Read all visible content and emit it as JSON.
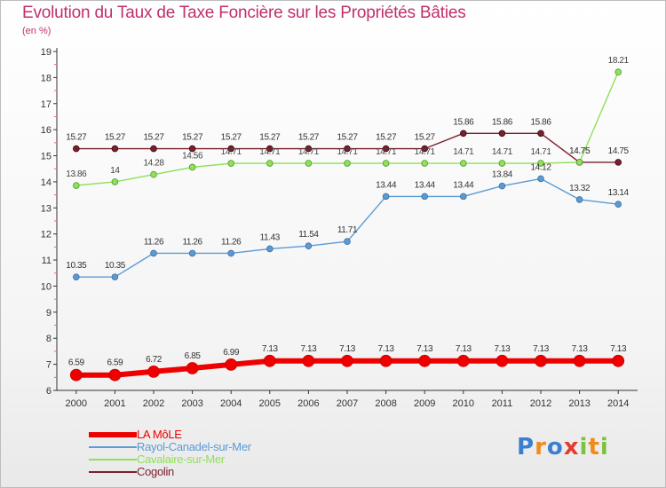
{
  "chart_data": {
    "type": "line",
    "title": "Evolution du Taux de Taxe Foncière sur les Propriétés Bâties",
    "subtitle": "(en %)",
    "xlabel": "",
    "ylabel": "",
    "x": [
      "2000",
      "2001",
      "2002",
      "2003",
      "2004",
      "2005",
      "2006",
      "2007",
      "2008",
      "2009",
      "2010",
      "2011",
      "2012",
      "2013",
      "2014"
    ],
    "ylim": [
      6,
      19
    ],
    "yticks": [
      6,
      7,
      8,
      9,
      10,
      11,
      12,
      13,
      14,
      15,
      16,
      17,
      18,
      19
    ],
    "grid": false,
    "legend_position": "bottom-left",
    "series": [
      {
        "name": "LA MôLE",
        "color": "#ee0000",
        "values": [
          6.59,
          6.59,
          6.72,
          6.85,
          6.99,
          7.13,
          7.13,
          7.13,
          7.13,
          7.13,
          7.13,
          7.13,
          7.13,
          7.13,
          7.13
        ],
        "labels": [
          "6.59",
          "6.59",
          "6.72",
          "6.85",
          "6.99",
          "7.13",
          "7.13",
          "7.13",
          "7.13",
          "7.13",
          "7.13",
          "7.13",
          "7.13",
          "7.13",
          "7.13"
        ]
      },
      {
        "name": "Rayol-Canadel-sur-Mer",
        "color": "#5b9bd5",
        "values": [
          10.35,
          10.35,
          11.26,
          11.26,
          11.26,
          11.43,
          11.54,
          11.71,
          13.44,
          13.44,
          13.44,
          13.84,
          14.12,
          13.32,
          13.14
        ],
        "labels": [
          "10.35",
          "10.35",
          "11.26",
          "11.26",
          "11.26",
          "11.43",
          "11.54",
          "11.71",
          "13.44",
          "13.44",
          "13.44",
          "13.84",
          "14.12",
          "13.32",
          "13.14"
        ]
      },
      {
        "name": "Cavalaire-sur-Mer",
        "color": "#8fe05a",
        "values": [
          13.86,
          14,
          14.28,
          14.56,
          14.71,
          14.71,
          14.71,
          14.71,
          14.71,
          14.71,
          14.71,
          14.71,
          14.71,
          14.75,
          18.21
        ],
        "labels": [
          "13.86",
          "14",
          "14.28",
          "14.56",
          "14.71",
          "14.71",
          "14.71",
          "14.71",
          "14.71",
          "14.71",
          "14.71",
          "14.71",
          "14.71",
          "14.75",
          "18.21"
        ]
      },
      {
        "name": "Cogolin",
        "color": "#7b1f2b",
        "values": [
          15.27,
          15.27,
          15.27,
          15.27,
          15.27,
          15.27,
          15.27,
          15.27,
          15.27,
          15.27,
          15.86,
          15.86,
          15.86,
          14.75,
          14.75
        ],
        "labels": [
          "15.27",
          "15.27",
          "15.27",
          "15.27",
          "15.27",
          "15.27",
          "15.27",
          "15.27",
          "15.27",
          "15.27",
          "15.86",
          "15.86",
          "15.86",
          "14.75",
          "14.75"
        ]
      }
    ]
  },
  "logo": {
    "letters": [
      "P",
      "r",
      "o",
      "x",
      "i",
      "t",
      "i"
    ],
    "colors": [
      "#3a7fd0",
      "#f08a1c",
      "#3a7fd0",
      "#e33b2f",
      "#7cc242",
      "#f08a1c",
      "#7cc242"
    ]
  }
}
